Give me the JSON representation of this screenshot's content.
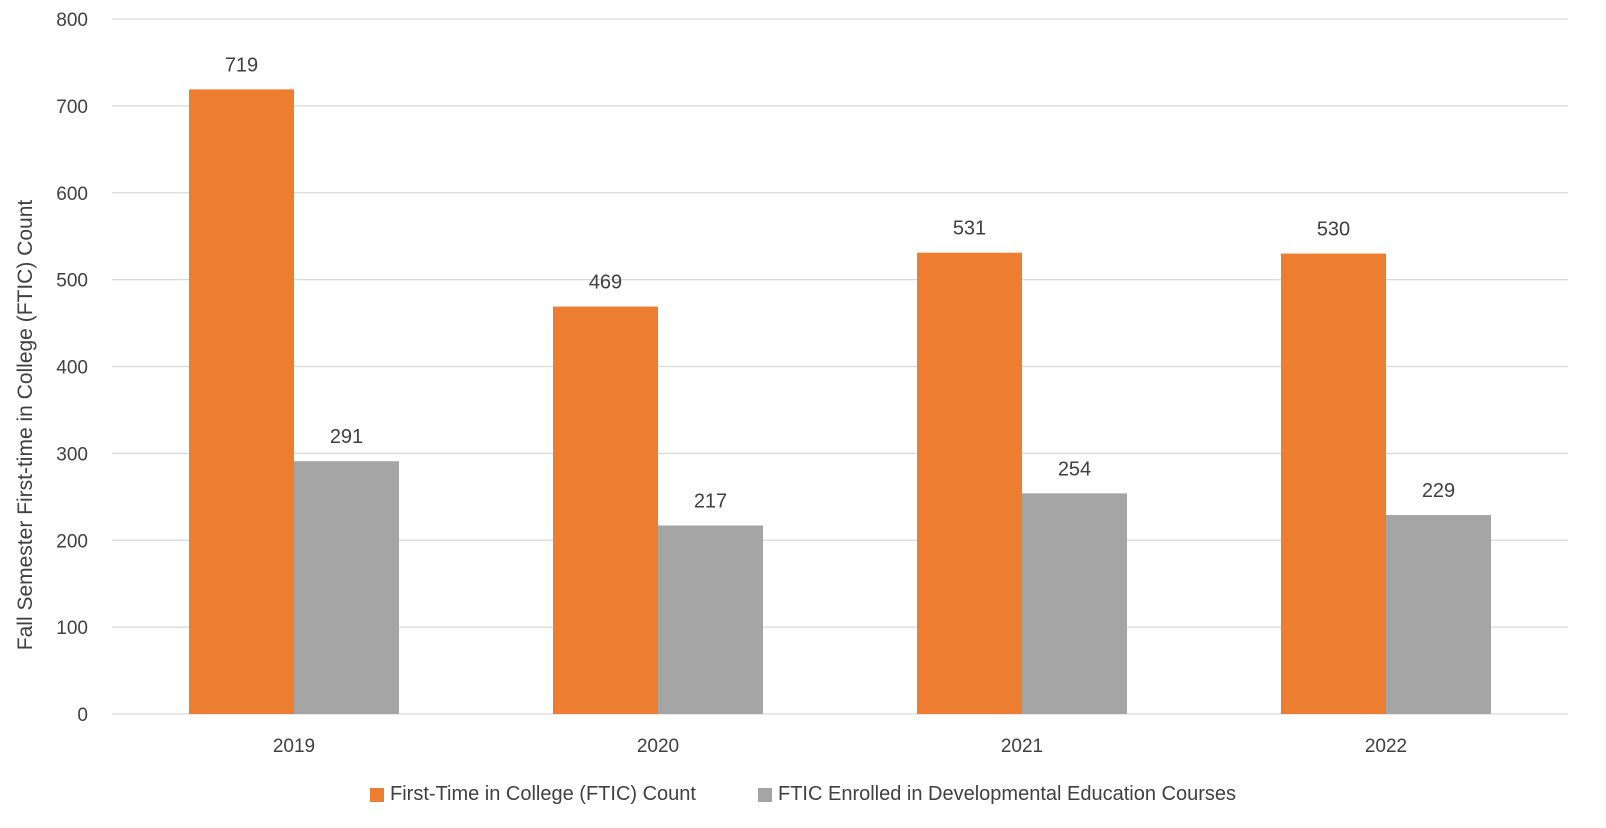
{
  "chart_data": {
    "type": "bar",
    "categories": [
      "2019",
      "2020",
      "2021",
      "2022"
    ],
    "series": [
      {
        "name": "First-Time in College (FTIC) Count",
        "values": [
          719,
          469,
          531,
          530
        ],
        "color": "#ED7D31"
      },
      {
        "name": "FTIC Enrolled in Developmental Education Courses",
        "values": [
          291,
          217,
          254,
          229
        ],
        "color": "#A5A5A5"
      }
    ],
    "title": "",
    "xlabel": "",
    "ylabel": "Fall Semester First-time in College (FTIC) Count",
    "ylim": [
      0,
      800
    ],
    "yticks": [
      0,
      100,
      200,
      300,
      400,
      500,
      600,
      700,
      800
    ],
    "grid": true,
    "legend_position": "bottom"
  }
}
